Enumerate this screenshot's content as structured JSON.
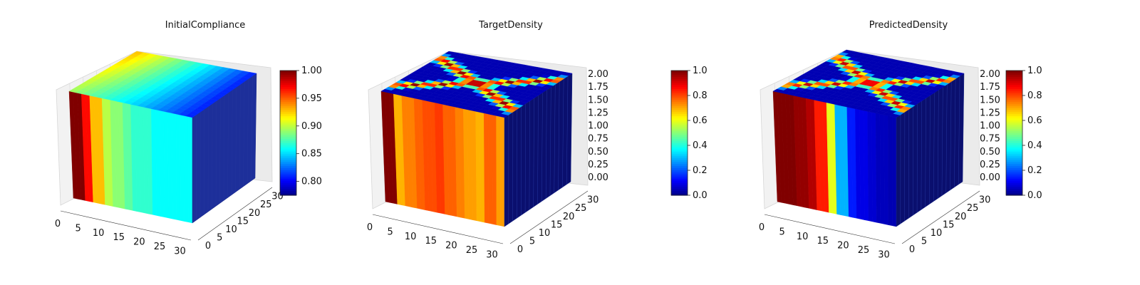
{
  "chart_data": [
    {
      "type": "3d-voxel",
      "title": "InitialCompliance",
      "x_ticks": [
        "0",
        "5",
        "10",
        "15",
        "20",
        "25",
        "30"
      ],
      "y_ticks": [
        "0",
        "5",
        "10",
        "15",
        "20",
        "25",
        "30"
      ],
      "z_ticks": [],
      "colorbar": {
        "ticks": [
          "0.80",
          "0.85",
          "0.90",
          "0.95",
          "1.00"
        ],
        "range": [
          0.775,
          1.0
        ],
        "colormap": "jet"
      },
      "front_face_x_values": [
        1.0,
        0.97,
        0.93,
        0.9,
        0.89,
        0.88,
        0.87,
        0.87,
        0.86,
        0.86,
        0.86,
        0.86
      ],
      "grid": true
    },
    {
      "type": "3d-voxel",
      "title": "TargetDensity",
      "x_ticks": [
        "0",
        "5",
        "10",
        "15",
        "20",
        "25",
        "30"
      ],
      "y_ticks": [
        "0",
        "5",
        "10",
        "15",
        "20",
        "25",
        "30"
      ],
      "z_ticks": [
        "0.00",
        "0.25",
        "0.50",
        "0.75",
        "1.00",
        "1.25",
        "1.50",
        "1.75",
        "2.00"
      ],
      "colorbar": {
        "ticks": [
          "0.0",
          "0.2",
          "0.4",
          "0.6",
          "0.8",
          "1.0"
        ],
        "range": [
          0.0,
          1.0
        ],
        "colormap": "jet"
      },
      "front_face_x_values": [
        1.0,
        0.7,
        0.75,
        0.78,
        0.8,
        0.82,
        0.78,
        0.75,
        0.72,
        0.7,
        0.78,
        0.72
      ],
      "grid": true
    },
    {
      "type": "3d-voxel",
      "title": "PredictedDensity",
      "x_ticks": [
        "0",
        "5",
        "10",
        "15",
        "20",
        "25",
        "30"
      ],
      "y_ticks": [
        "0",
        "5",
        "10",
        "15",
        "20",
        "25",
        "30"
      ],
      "z_ticks": [
        "0.00",
        "0.25",
        "0.50",
        "0.75",
        "1.00",
        "1.25",
        "1.50",
        "1.75",
        "2.00"
      ],
      "colorbar": {
        "ticks": [
          "0.0",
          "0.2",
          "0.4",
          "0.6",
          "0.8",
          "1.0"
        ],
        "range": [
          0.0,
          1.0
        ],
        "colormap": "jet"
      },
      "front_face_x_values": [
        1.0,
        1.0,
        0.98,
        0.95,
        0.85,
        0.6,
        0.3,
        0.15,
        0.1,
        0.08,
        0.06,
        0.05
      ],
      "grid": true
    }
  ]
}
